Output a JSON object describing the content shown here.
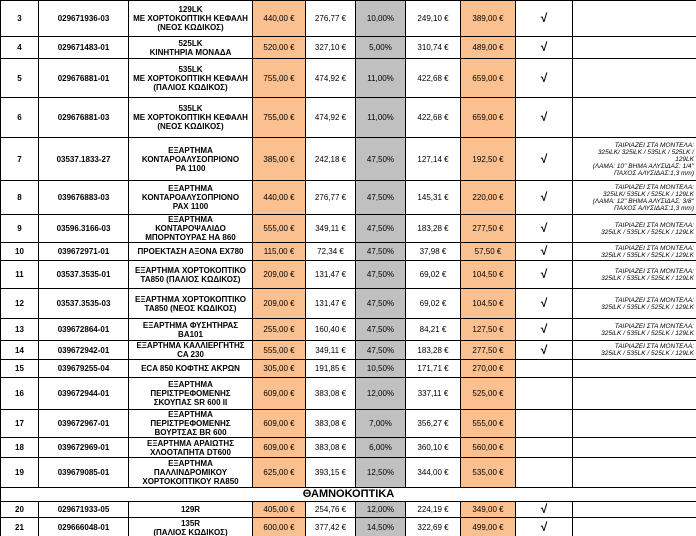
{
  "table": {
    "rows": [
      [
        "3",
        "029671936-03",
        "129LK\nΜΕ ΧΟΡΤΟΚΟΠΤΙΚΗ ΚΕΦΑΛΗ\n(ΝΕΟΣ ΚΩΔΙΚΟΣ)",
        "440,00 €",
        "276,77 €",
        "10,00%",
        "249,10 €",
        "389,00 €",
        "√"
      ],
      [
        "4",
        "029671483-01",
        "525LK\nΚΙΝΗΤΗΡΙΑ ΜΟΝΑΔΑ",
        "520,00 €",
        "327,10 €",
        "5,00%",
        "310,74 €",
        "489,00 €",
        "√"
      ],
      [
        "5",
        "029676881-01",
        "535LK\nΜΕ ΧΟΡΤΟΚΟΠΤΙΚΗ ΚΕΦΑΛΗ\n(ΠΑΛΙΟΣ ΚΩΔΙΚΟΣ)",
        "755,00 €",
        "474,92 €",
        "11,00%",
        "422,68 €",
        "659,00 €",
        "√"
      ],
      [
        "6",
        "029676881-03",
        "535LK\nΜΕ ΧΟΡΤΟΚΟΠΤΙΚΗ ΚΕΦΑΛΗ\n(ΝΕΟΣ ΚΩΔΙΚΟΣ)",
        "755,00 €",
        "474,92 €",
        "11,00%",
        "422,68 €",
        "659,00 €",
        "√"
      ],
      [
        "7",
        "03537.1833-27",
        "ΕΞΑΡΤΗΜΑ\nΚΟΝΤΑΡΟΑΛΥΣΟΠΡΙΟΝΟ\nPA 1100",
        "385,00 €",
        "242,18 €",
        "47,50%",
        "127,14 €",
        "192,50 €",
        "√",
        "ΤΑΙΡΙΑΖΕΙ ΣΤΑ ΜΟΝΤΕΛΑ:\n325iLK/ 325iLK / 535LK / 525LK /\n129LK\n(ΛΑΜΑ: 10'' ΒΗΜΑ ΑΛΥΣΙΔΑΣ: 1/4''\nΠΑΧΟΣ ΑΛΥΣΙΔΑΣ:1,3 mm)"
      ],
      [
        "8",
        "039676883-03",
        "ΕΞΑΡΤΗΜΑ\nΚΟΝΤΑΡΟΑΛΥΣΟΠΡΙΟΝΟ\nPAX 1100",
        "440,00 €",
        "276,77 €",
        "47,50%",
        "145,31 €",
        "220,00 €",
        "√",
        "ΤΑΙΡΙΑΖΕΙ ΣΤΑ ΜΟΝΤΕΛΑ:\n325iLK/ 535LK / 525LK / 129LK\n(ΛΑΜΑ: 12'' ΒΗΜΑ ΑΛΥΣΙΔΑΣ: 3/8''\nΠΑΧΟΣ ΑΛΥΣΙΔΑΣ:1,3 mm)"
      ],
      [
        "9",
        "03596.3166-03",
        "ΕΞΑΡΤΗΜΑ\nΚΟΝΤΑΡΟΨΑΛΙΔΟ\nΜΠΟΡΝΤΟΥΡΑΣ ΗΑ 860",
        "555,00 €",
        "349,11 €",
        "47,50%",
        "183,28 €",
        "277,50 €",
        "√",
        "ΤΑΙΡΙΑΖΕΙ ΣΤΑ ΜΟΝΤΕΛΑ:\n325iLK / 535LK / 525LK / 129LK"
      ],
      [
        "10",
        "039672971-01",
        "ΠΡΟΕΚΤΑΣΗ ΑΞΟΝΑ ΕΧ780",
        "115,00 €",
        "72,34 €",
        "47,50%",
        "37,98 €",
        "57,50 €",
        "√",
        "ΤΑΙΡΙΑΖΕΙ ΣΤΑ ΜΟΝΤΕΛΑ:\n325iLK / 535LK / 525LK / 129LK"
      ],
      [
        "11",
        "03537.3535-01",
        "ΕΞΑΡΤΗΜΑ ΧΟΡΤΟΚΟΠΤΙΚΟ\nΤΑ850 (ΠΑΛΙΟΣ ΚΩΔΙΚΟΣ)",
        "209,00 €",
        "131,47 €",
        "47,50%",
        "69,02 €",
        "104,50 €",
        "√",
        "ΤΑΙΡΙΑΖΕΙ ΣΤΑ ΜΟΝΤΕΛΑ:\n325iLK / 535LK / 525LK / 129LK"
      ],
      [
        "12",
        "03537.3535-03",
        "ΕΞΑΡΤΗΜΑ ΧΟΡΤΟΚΟΠΤΙΚΟ\nΤΑ850 (ΝΕΟΣ ΚΩΔΙΚΟΣ)",
        "209,00 €",
        "131,47 €",
        "47,50%",
        "69,02 €",
        "104,50 €",
        "√",
        "ΤΑΙΡΙΑΖΕΙ ΣΤΑ ΜΟΝΤΕΛΑ:\n325iLK / 535LK / 525LK / 129LK"
      ],
      [
        "13",
        "039672864-01",
        "ΕΞΑΡΤΗΜΑ ΦΥΣΗΤΗΡΑΣ\nBA101",
        "255,00 €",
        "160,40 €",
        "47,50%",
        "84,21 €",
        "127,50 €",
        "√",
        "ΤΑΙΡΙΑΖΕΙ ΣΤΑ ΜΟΝΤΕΛΑ:\n325iLK / 535LK / 525LK / 129LK"
      ],
      [
        "14",
        "039672942-01",
        "ΕΞΑΡΤΗΜΑ ΚΑΛΛΙΕΡΓΗΤΗΣ\nCA 230",
        "555,00 €",
        "349,11 €",
        "47,50%",
        "183,28 €",
        "277,50 €",
        "√",
        "ΤΑΙΡΙΑΖΕΙ ΣΤΑ ΜΟΝΤΕΛΑ:\n325iLK / 535LK / 525LK / 129LK"
      ],
      [
        "15",
        "039679255-04",
        "ECA 850 ΚΟΦΤΗΣ ΑΚΡΩΝ",
        "305,00 €",
        "191,85 €",
        "10,50%",
        "171,71 €",
        "270,00 €"
      ],
      [
        "16",
        "039672944-01",
        "ΕΞΑΡΤΗΜΑ\nΠΕΡΙΣΤΡΕΦΟΜΕΝΗΣ\nΣΚΟΥΠΑΣ SR 600 II",
        "609,00 €",
        "383,08 €",
        "12,00%",
        "337,11 €",
        "525,00 €"
      ],
      [
        "17",
        "039672967-01",
        "ΕΞΑΡΤΗΜΑ\nΠΕΡΙΣΤΡΕΦΟΜΕΝΗΣ\nΒΟΥΡΤΣΑΣ BR 600",
        "609,00 €",
        "383,08 €",
        "7,00%",
        "356,27 €",
        "555,00 €"
      ],
      [
        "18",
        "039672969-01",
        "ΕΞΑΡΤΗΜΑ ΑΡΑΙΩΤΗΣ\nΧΛΟΟΤΑΠΗΤΑ DT600",
        "609,00 €",
        "383,08 €",
        "6,00%",
        "360,10 €",
        "560,00 €"
      ],
      [
        "19",
        "039679085-01",
        "ΕΞΑΡΤΗΜΑ\nΠΑΛΛΙΝΔΡΟΜΙΚΟΥ\nΧΟΡΤΟΚΟΠΤΙΚΟΥ RA850",
        "625,00 €",
        "393,15 €",
        "12,50%",
        "344,00 €",
        "535,00 €"
      ],
      [
        "ΘΑΜΝΟΚΟΠΤΙΚΑ"
      ],
      [
        "20",
        "029671933-05",
        "129R",
        "405,00 €",
        "254,76 €",
        "12,00%",
        "224,19 €",
        "349,00 €",
        "√"
      ],
      [
        "21",
        "029666048-01",
        "135R\n(ΠΑΛΙΟΣ ΚΩΔΙΚΟΣ)",
        "600,00 €",
        "377,42 €",
        "14,50%",
        "322,69 €",
        "499,00 €",
        "√"
      ]
    ]
  }
}
